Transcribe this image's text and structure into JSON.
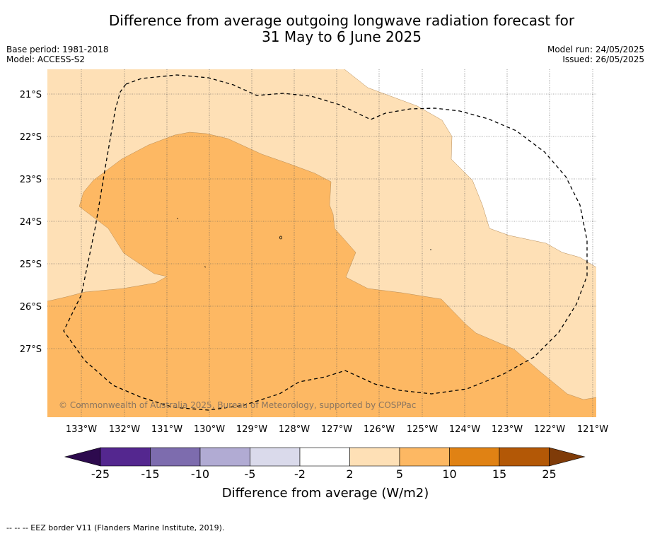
{
  "title_line1": "Difference from average outgoing longwave radiation forecast for",
  "title_line2": "31 May to 6 June 2025",
  "base_period": "Base period: 1981-2018",
  "model": "Model: ACCESS-S2",
  "model_run": "Model run: 24/05/2025",
  "issued": "Issued: 26/05/2025",
  "copyright": "© Commonwealth of Australia 2025, Bureau of Meteorology, supported by COSPPac",
  "lat_labels": [
    "21°S",
    "22°S",
    "23°S",
    "24°S",
    "25°S",
    "26°S",
    "27°S"
  ],
  "lon_labels": [
    "133°W",
    "132°W",
    "131°W",
    "130°W",
    "129°W",
    "128°W",
    "127°W",
    "126°W",
    "125°W",
    "124°W",
    "123°W",
    "122°W",
    "121°W"
  ],
  "colorbar": {
    "title": "Difference from average (W/m2)",
    "tick_labels": [
      "-25",
      "-15",
      "-10",
      "-5",
      "-2",
      "2",
      "5",
      "10",
      "15",
      "25"
    ],
    "colors": [
      "#2d0a4e",
      "#54278f",
      "#7d6cae",
      "#b1abd3",
      "#dadaeb",
      "#ffffff",
      "#fee0b6",
      "#fdb863",
      "#e08214",
      "#b35806",
      "#7f3b08"
    ]
  },
  "footnote": "-- -- -- EEZ border V11 (Flanders Marine Institute, 2019).",
  "map_colors": {
    "light": "#fee0b6",
    "medium": "#fdb863",
    "blank": "#ffffff"
  }
}
